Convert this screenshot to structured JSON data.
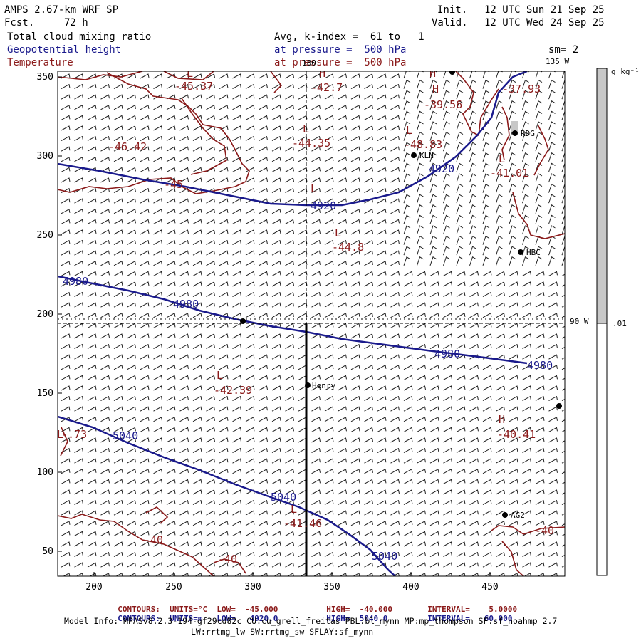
{
  "header": {
    "model": "AMPS 2.67-km WRF SP",
    "fcst_label": "Fcst.",
    "fcst_value": "72 h",
    "init_label": "Init.",
    "init": "12 UTC Sun 21 Sep 25",
    "valid_label": "Valid.",
    "valid": "12 UTC Wed 24 Sep 25",
    "field1": "Total cloud mixing ratio",
    "field2": "Geopotential height",
    "field3": "Temperature",
    "avg_text": "Avg, k-index =  61 to   1",
    "pressure2": "at pressure =  500 hPa",
    "pressure3": "at pressure =  500 hPa",
    "sm": "sm= 2"
  },
  "map": {
    "x_ticks": [
      "200",
      "250",
      "300",
      "350",
      "400",
      "450"
    ],
    "y_ticks": [
      "350",
      "300",
      "250",
      "200",
      "150",
      "100",
      "50"
    ],
    "meridian_labels": [
      "180",
      "135 W",
      "90 W"
    ],
    "stations": [
      "RDG",
      "KLN",
      "HBC",
      "Henry",
      "AG2"
    ],
    "height_labels": [
      "4920",
      "4920",
      "4980",
      "4980",
      "4980",
      "4980",
      "5040",
      "5040",
      "5040"
    ],
    "temp_labels": [
      "-45.37",
      "-42.7",
      "-39.56",
      "-37.93",
      "-46.42",
      "-44.35",
      "-48.83",
      "-41.01",
      "-45",
      "-44.8",
      "-42.39",
      "-40.41",
      "-41.46",
      "-40",
      "-40",
      "-40",
      "-.73"
    ],
    "pressure_system_letters": [
      "L",
      "H",
      "H",
      "L",
      "L",
      "L",
      "L",
      "L",
      "L",
      "H",
      "L",
      "H",
      "L"
    ]
  },
  "colorbar": {
    "units": "g kg⁻¹",
    "tick": ".01"
  },
  "footer": {
    "line1": {
      "lead": "CONTOURS:  UNITS=°C  LOW=  -45.000",
      "high": "HIGH=  -40.000",
      "interval": "INTERVAL=    5.0000"
    },
    "line2": {
      "lead": "CONTOURS:  UNITS=m   LOW=   4920.0",
      "high": "HIGH=  5040.0",
      "interval": "INTERVAL=   60.000"
    },
    "model_info": "Model Info: MPASv8.2.3-194-gf29cd82c CU:cu_grell_freitas PBL:bl_mynn MP:mp_thompson SF:sf_noahmp 2.7",
    "model_info2": "LW:rrtmg_lw SW:rrtmg_sw SFLAY:sf_mynn"
  },
  "colors": {
    "height": "#1a1a8c",
    "temperature": "#8b1a1a",
    "cloud_bar": "#c8c8c8"
  }
}
